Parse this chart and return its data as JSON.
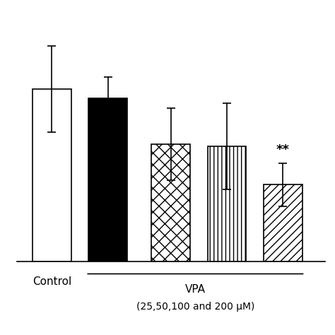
{
  "bars": [
    {
      "label": "Control",
      "value": 0.72,
      "error": 0.18,
      "hatch": "",
      "facecolor": "white",
      "edgecolor": "black"
    },
    {
      "label": "VPA 25",
      "value": 0.68,
      "error": 0.09,
      "hatch": "",
      "facecolor": "black",
      "edgecolor": "black"
    },
    {
      "label": "VPA 50",
      "value": 0.49,
      "error": 0.15,
      "hatch": "xx",
      "facecolor": "white",
      "edgecolor": "black"
    },
    {
      "label": "VPA 100",
      "value": 0.48,
      "error": 0.18,
      "hatch": "|||",
      "facecolor": "white",
      "edgecolor": "black"
    },
    {
      "label": "VPA 200",
      "value": 0.32,
      "error": 0.09,
      "hatch": "///",
      "facecolor": "white",
      "edgecolor": "black"
    }
  ],
  "ylim": [
    0,
    1.05
  ],
  "bar_width": 0.55,
  "x_positions": [
    0.6,
    1.4,
    2.3,
    3.1,
    3.9
  ],
  "xlim": [
    0.1,
    4.5
  ],
  "control_label": "Control",
  "vpa_label": "VPA",
  "vpa_sublabel": "(25,50,100 and 200 μM)",
  "significance_label": "**",
  "significance_bar_idx": 4,
  "background_color": "white",
  "axis_linewidth": 1.2,
  "error_capsize": 4
}
